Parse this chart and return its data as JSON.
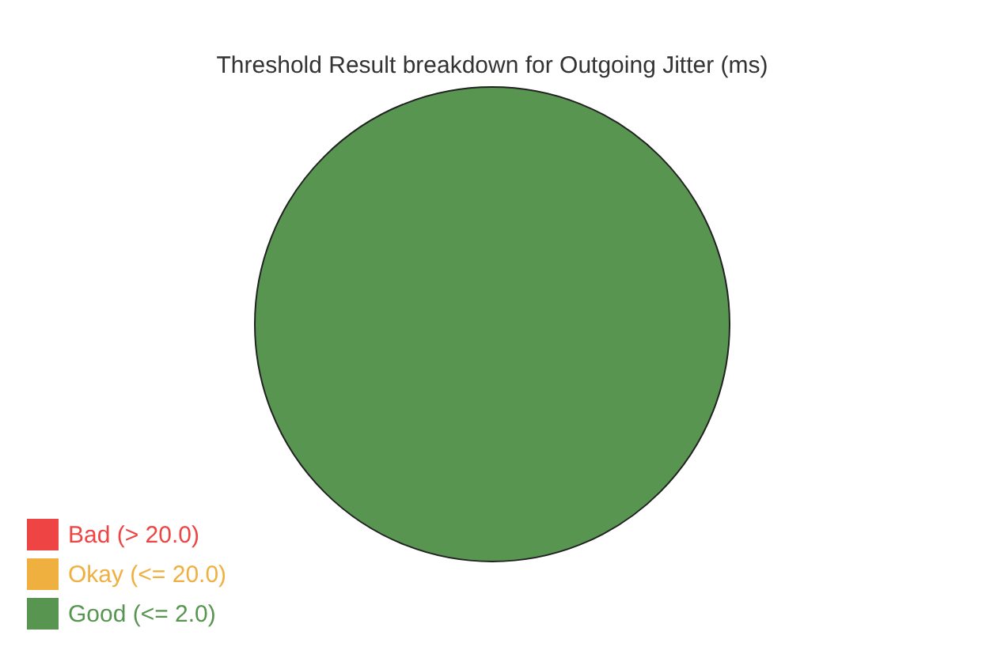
{
  "chart_data": {
    "type": "pie",
    "title": "Threshold Result breakdown for Outgoing Jitter (ms)",
    "categories": [
      "Bad (> 20.0)",
      "Okay (<= 20.0)",
      "Good (<= 2.0)"
    ],
    "values": [
      0,
      0,
      100
    ],
    "colors": [
      "#ef4444",
      "#f0b040",
      "#579550"
    ],
    "legend": "bottom left"
  }
}
